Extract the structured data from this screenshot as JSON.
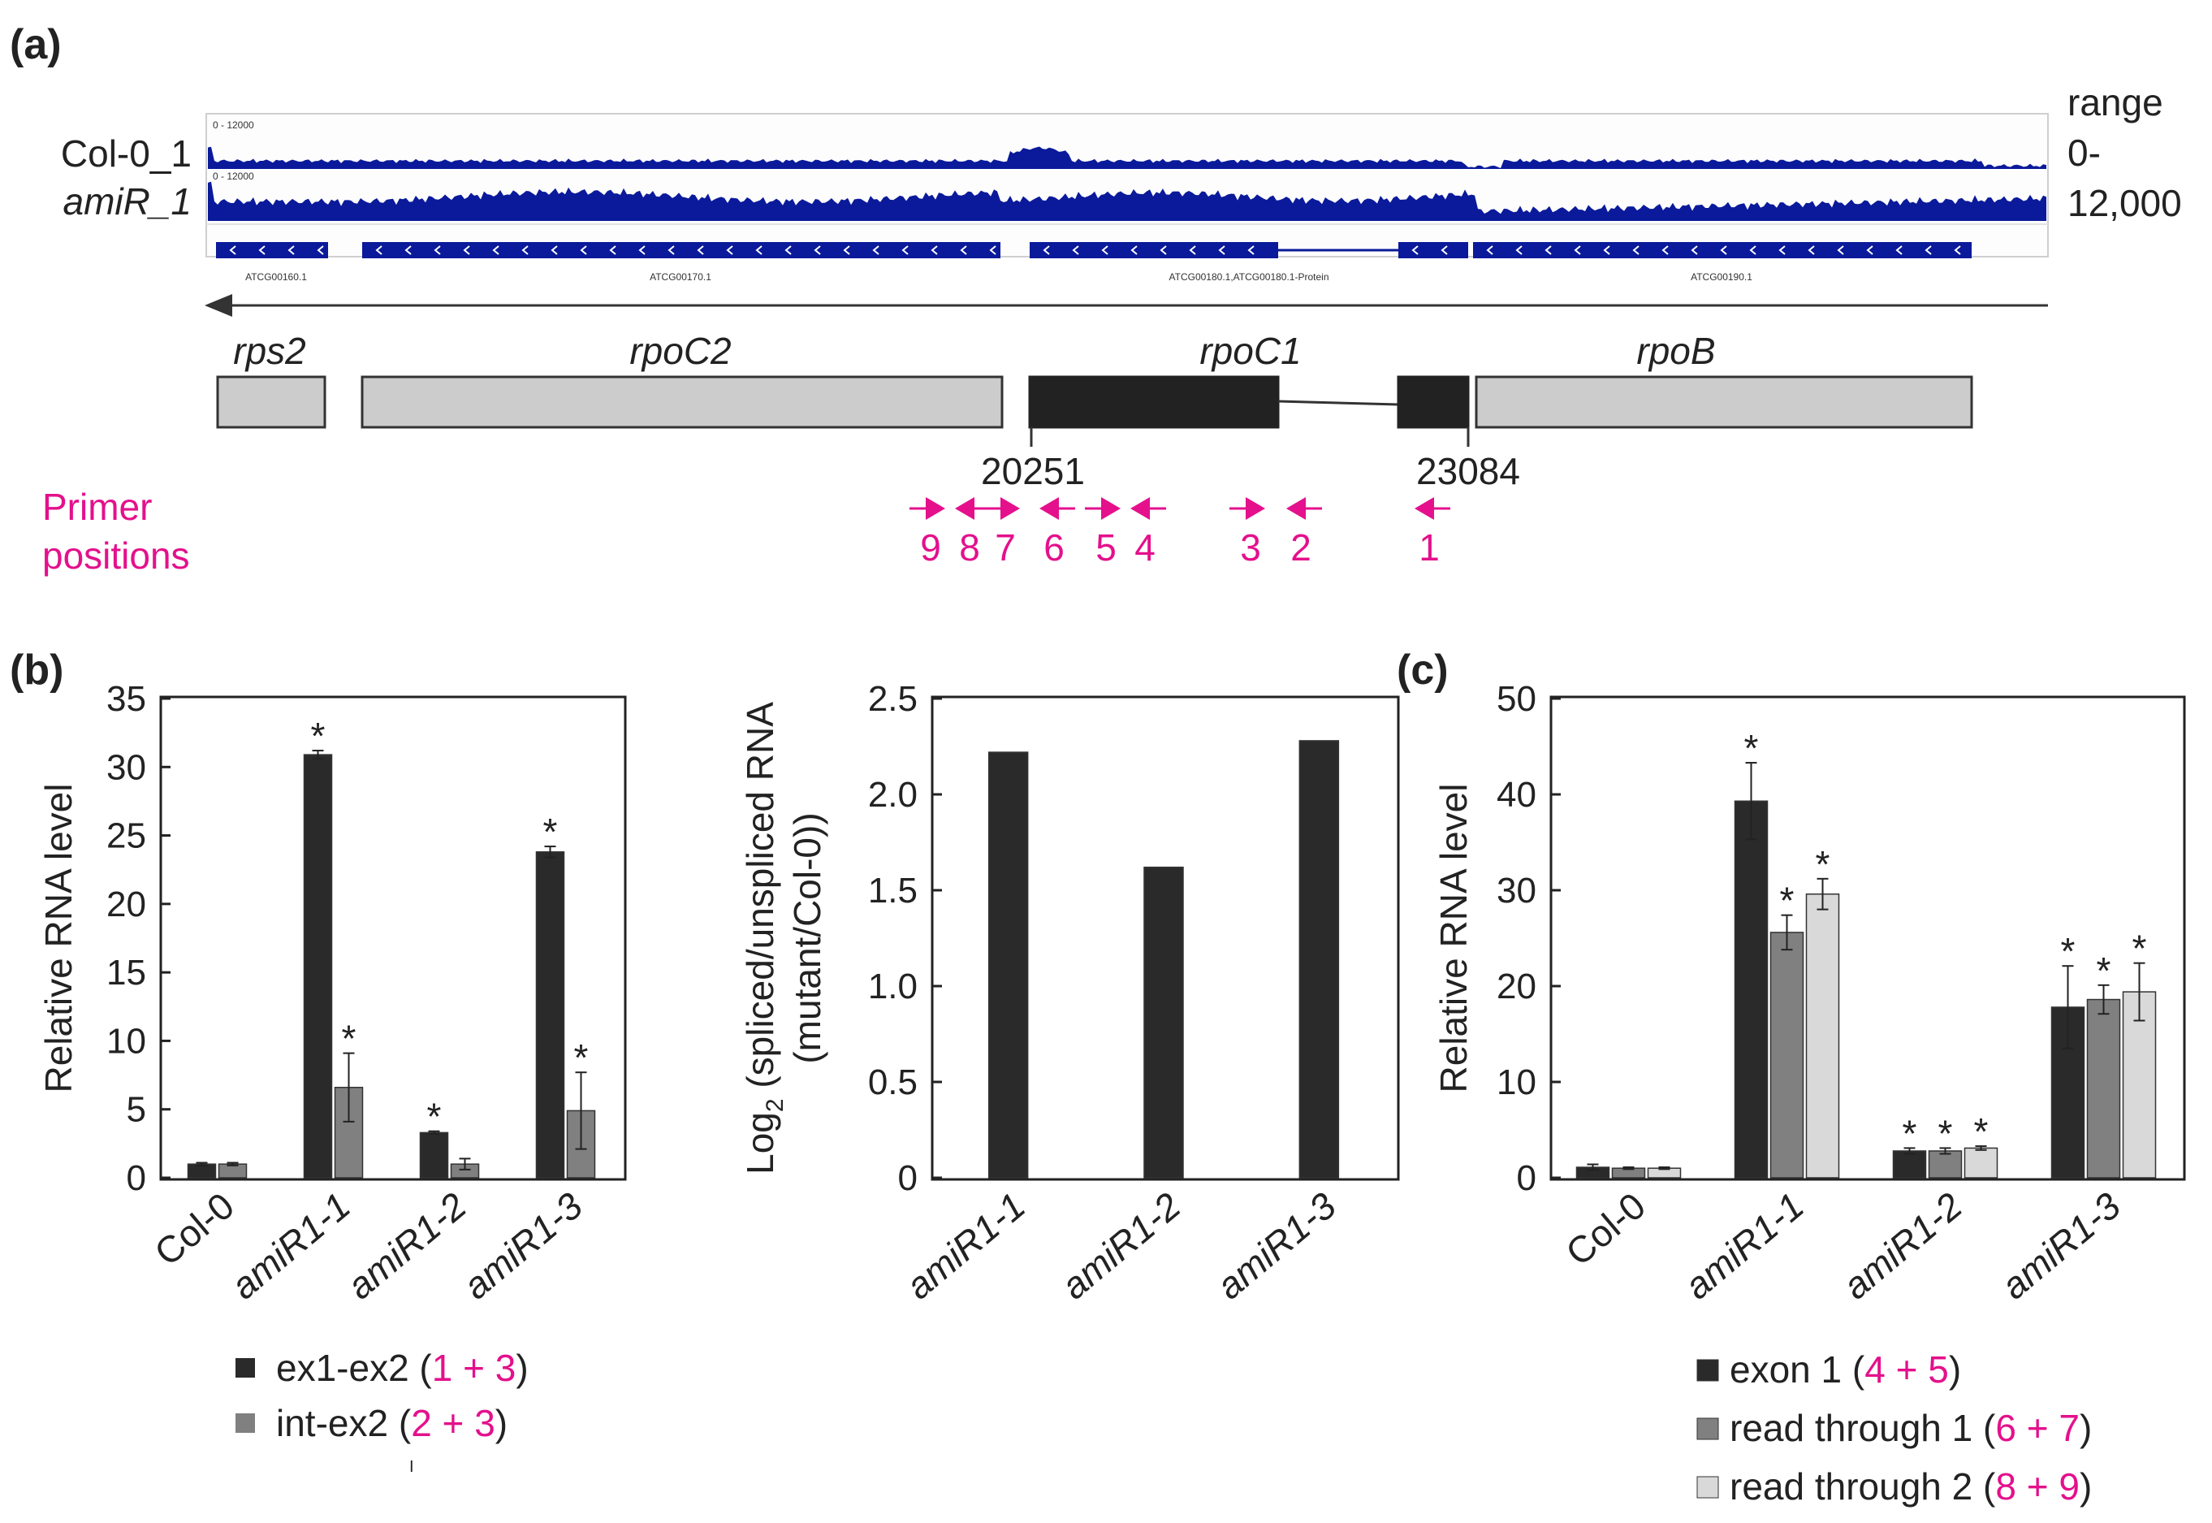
{
  "panel_a": {
    "label": "(a)",
    "tracks": [
      {
        "name": "Col-0_1",
        "scale": "0 - 12000"
      },
      {
        "name": "amiR_1",
        "scale": "0 - 12000"
      }
    ],
    "range_label": {
      "line1": "range",
      "line2": "0-",
      "line3": "12,000"
    },
    "feature_ids": [
      "ATCG00160.1",
      "ATCG00170.1",
      "ATCG00180.1,ATCG00180.1-Protein",
      "ATCG00190.1"
    ],
    "genes": [
      {
        "name": "rps2",
        "style": "light"
      },
      {
        "name": "rpoC2",
        "style": "light"
      },
      {
        "name": "rpoC1",
        "style": "dark"
      },
      {
        "name": "rpoB",
        "style": "light"
      }
    ],
    "positions": [
      "20251",
      "23084"
    ],
    "primer_title": {
      "line1": "Primer",
      "line2": "positions"
    },
    "primers": [
      {
        "num": "9",
        "dir": "right"
      },
      {
        "num": "8",
        "dir": "left"
      },
      {
        "num": "7",
        "dir": "right"
      },
      {
        "num": "6",
        "dir": "left"
      },
      {
        "num": "5",
        "dir": "right"
      },
      {
        "num": "4",
        "dir": "left"
      },
      {
        "num": "3",
        "dir": "right"
      },
      {
        "num": "2",
        "dir": "left"
      },
      {
        "num": "1",
        "dir": "left"
      }
    ],
    "colors": {
      "coverage": "#0a1a9a",
      "primer": "#e4108c",
      "gene_light": "#cccccc",
      "gene_dark": "#222222"
    }
  },
  "chart_data": [
    {
      "panel": "(b)",
      "type": "bar",
      "ylabel": "Relative RNA level",
      "ylim": [
        0,
        35
      ],
      "yticks": [
        "0",
        "5",
        "10",
        "15",
        "20",
        "25",
        "30",
        "35"
      ],
      "categories": [
        "Col-0",
        "amiR1-1",
        "amiR1-2",
        "amiR1-3"
      ],
      "series": [
        {
          "name": "ex1-ex2",
          "primers": "1 + 3",
          "color": "#2a2a2a",
          "values": [
            1.0,
            30.9,
            3.3,
            23.8
          ],
          "errors": [
            0.1,
            0.3,
            0.1,
            0.4
          ],
          "sig": [
            false,
            true,
            true,
            true
          ]
        },
        {
          "name": "int-ex2",
          "primers": "2 + 3",
          "color": "#808080",
          "values": [
            1.0,
            6.6,
            1.0,
            4.9
          ],
          "errors": [
            0.1,
            2.5,
            0.4,
            2.8
          ],
          "sig": [
            false,
            true,
            false,
            true
          ]
        }
      ],
      "significance_marker": "*",
      "legend_stray_mark": "I"
    },
    {
      "panel": "(b) right",
      "type": "bar",
      "ylabel": "Log2 (spliced/unspliced RNA (mutant/Col-0))",
      "ylabel_parts": {
        "prefix": "Log",
        "sub": "2",
        "rest": " (spliced/unspliced RNA",
        "line2": "(mutant/Col-0))"
      },
      "ylim": [
        0,
        2.5
      ],
      "yticks": [
        "0",
        "0.5",
        "1.0",
        "1.5",
        "2.0",
        "2.5"
      ],
      "categories": [
        "amiR1-1",
        "amiR1-2",
        "amiR1-3"
      ],
      "values": [
        2.22,
        1.62,
        2.28
      ],
      "color": "#2a2a2a"
    },
    {
      "panel": "(c)",
      "type": "bar",
      "ylabel": "Relative RNA level",
      "ylim": [
        0,
        50
      ],
      "yticks": [
        "0",
        "10",
        "20",
        "30",
        "40",
        "50"
      ],
      "categories": [
        "Col-0",
        "amiR1-1",
        "amiR1-2",
        "amiR1-3"
      ],
      "series": [
        {
          "name": "exon 1",
          "primers": "4 + 5",
          "color": "#2a2a2a",
          "values": [
            1.1,
            39.3,
            2.8,
            17.8
          ],
          "errors": [
            0.3,
            4.0,
            0.3,
            4.3
          ],
          "sig": [
            false,
            true,
            true,
            true
          ]
        },
        {
          "name": "read through 1",
          "primers": "6 + 7",
          "color": "#808080",
          "values": [
            1.0,
            25.6,
            2.8,
            18.6
          ],
          "errors": [
            0.1,
            1.8,
            0.3,
            1.5
          ],
          "sig": [
            false,
            true,
            true,
            true
          ]
        },
        {
          "name": "read through 2",
          "primers": "8 + 9",
          "color": "#d9d9d9",
          "values": [
            1.0,
            29.6,
            3.1,
            19.4
          ],
          "errors": [
            0.1,
            1.6,
            0.2,
            3.0
          ],
          "sig": [
            false,
            true,
            true,
            true
          ]
        }
      ],
      "significance_marker": "*"
    }
  ]
}
